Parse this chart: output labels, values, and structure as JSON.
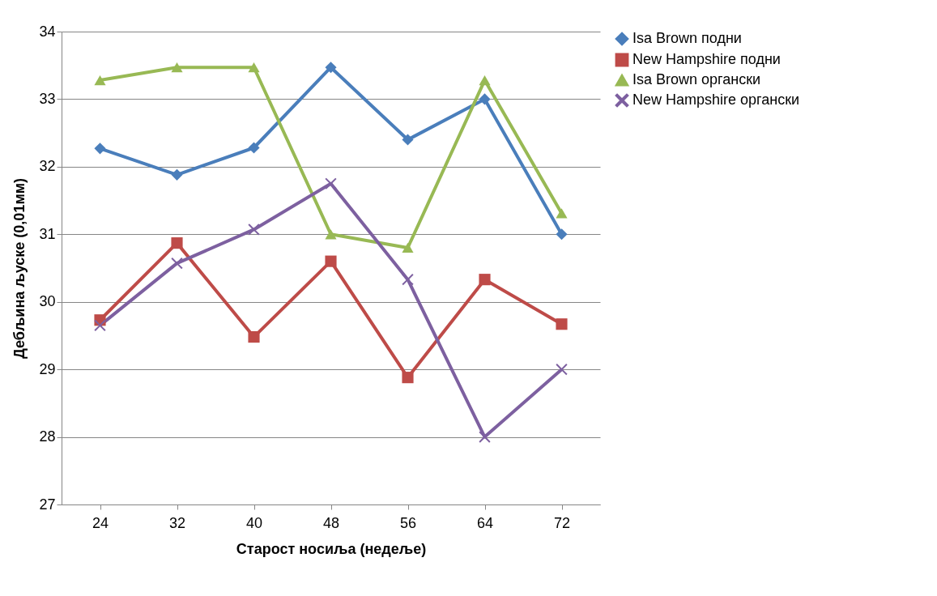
{
  "chart_data": {
    "type": "line",
    "xlabel": "Старост носиља (недеље)",
    "ylabel": "Дебљина љуске (0,01мм)",
    "categories": [
      "24",
      "32",
      "40",
      "48",
      "56",
      "64",
      "72"
    ],
    "series": [
      {
        "name": "Isa Brown подни",
        "color": "#4a7ebb",
        "marker": "diamond",
        "values": [
          32.27,
          31.88,
          32.28,
          33.47,
          32.4,
          33.0,
          31.0
        ]
      },
      {
        "name": "New Hampshire подни",
        "color": "#be4b48",
        "marker": "square",
        "values": [
          29.73,
          30.87,
          29.48,
          30.6,
          28.88,
          30.33,
          29.67
        ]
      },
      {
        "name": "Isa Brown органски",
        "color": "#98b954",
        "marker": "triangle",
        "values": [
          33.28,
          33.47,
          33.47,
          31.0,
          30.8,
          33.28,
          31.31
        ]
      },
      {
        "name": "New Hampshire органски",
        "color": "#7d60a0",
        "marker": "cross",
        "values": [
          29.65,
          30.57,
          31.07,
          31.75,
          30.33,
          28.0,
          29.0
        ]
      }
    ],
    "ylim": [
      27,
      34
    ],
    "yticks": [
      27,
      28,
      29,
      30,
      31,
      32,
      33,
      34
    ],
    "grid": "y",
    "legend": "right"
  }
}
